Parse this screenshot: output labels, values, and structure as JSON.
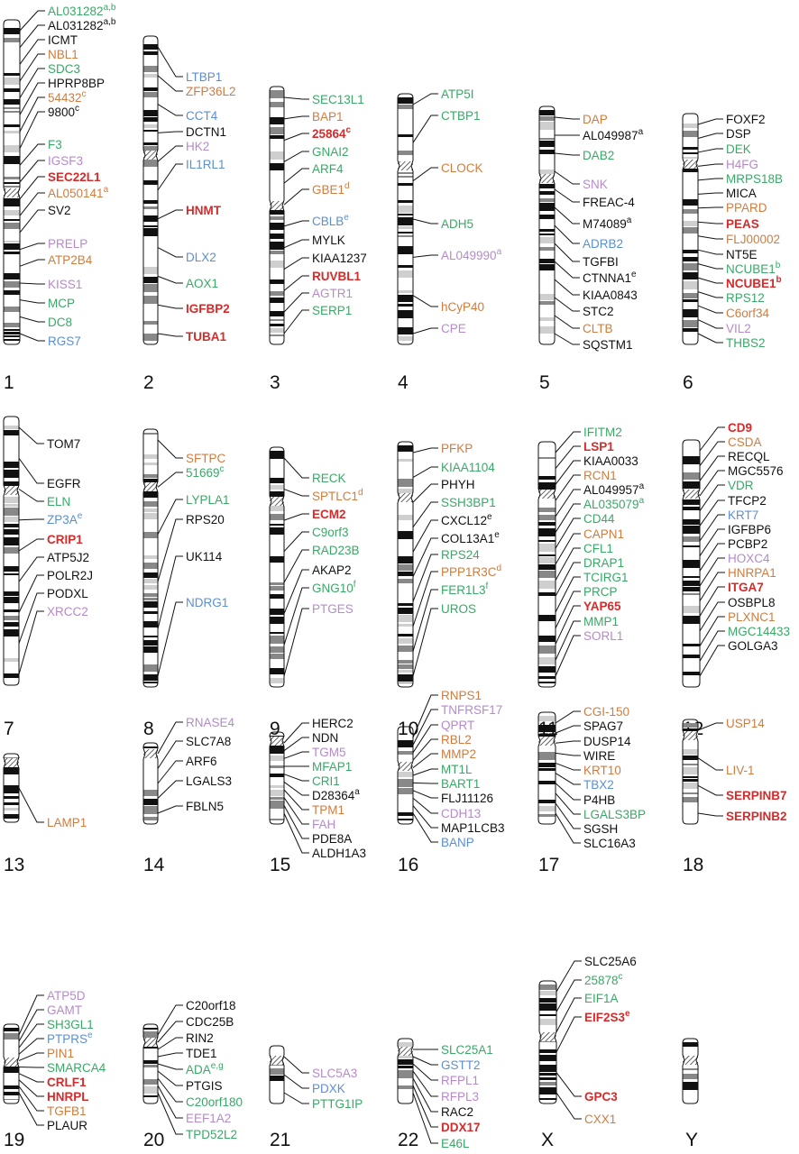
{
  "colors": {
    "black": "#111111",
    "green": "#3aa867",
    "orange": "#d07c3f",
    "red": "#d42b2b",
    "blue": "#5b8fd3",
    "purple": "#b58ac9"
  },
  "chromosomes": [
    {
      "id": "1",
      "label": "1",
      "genes": [
        {
          "name": "AL031282",
          "sup": "a,b",
          "color": "green"
        },
        {
          "name": "AL031282",
          "sup": "a,b",
          "color": "black"
        },
        {
          "name": "ICMT",
          "color": "black"
        },
        {
          "name": "NBL1",
          "color": "orange"
        },
        {
          "name": "SDC3",
          "color": "green"
        },
        {
          "name": "HPRP8BP",
          "color": "black"
        },
        {
          "name": "54432",
          "sup": "c",
          "color": "orange"
        },
        {
          "name": "9800",
          "sup": "c",
          "color": "black"
        },
        {
          "name": "F3",
          "color": "green"
        },
        {
          "name": "IGSF3",
          "color": "purple"
        },
        {
          "name": "SEC22L1",
          "color": "red",
          "bold": true
        },
        {
          "name": "AL050141",
          "sup": "a",
          "color": "orange"
        },
        {
          "name": "SV2",
          "color": "black"
        },
        {
          "name": "PRELP",
          "color": "purple"
        },
        {
          "name": "ATP2B4",
          "color": "orange"
        },
        {
          "name": "KISS1",
          "color": "purple"
        },
        {
          "name": "MCP",
          "color": "green"
        },
        {
          "name": "DC8",
          "color": "green"
        },
        {
          "name": "RGS7",
          "color": "blue"
        }
      ]
    },
    {
      "id": "2",
      "label": "2",
      "genes": [
        {
          "name": "LTBP1",
          "color": "blue"
        },
        {
          "name": "ZFP36L2",
          "color": "orange"
        },
        {
          "name": "CCT4",
          "color": "blue"
        },
        {
          "name": "DCTN1",
          "color": "black"
        },
        {
          "name": "HK2",
          "color": "purple"
        },
        {
          "name": "IL1RL1",
          "color": "blue"
        },
        {
          "name": "HNMT",
          "color": "red",
          "bold": true
        },
        {
          "name": "DLX2",
          "color": "blue"
        },
        {
          "name": "AOX1",
          "color": "green"
        },
        {
          "name": "IGFBP2",
          "color": "red",
          "bold": true
        },
        {
          "name": "TUBA1",
          "color": "red",
          "bold": true
        }
      ]
    },
    {
      "id": "3",
      "label": "3",
      "genes": [
        {
          "name": "SEC13L1",
          "color": "green"
        },
        {
          "name": "BAP1",
          "color": "orange"
        },
        {
          "name": "25864",
          "sup": "c",
          "color": "red",
          "bold": true
        },
        {
          "name": "GNAI2",
          "color": "green"
        },
        {
          "name": "ARF4",
          "color": "green"
        },
        {
          "name": "GBE1",
          "sup": "d",
          "color": "orange"
        },
        {
          "name": "CBLB",
          "sup": "e",
          "color": "blue"
        },
        {
          "name": "MYLK",
          "color": "black"
        },
        {
          "name": "KIAA1237",
          "color": "black"
        },
        {
          "name": "RUVBL1",
          "color": "red",
          "bold": true
        },
        {
          "name": "AGTR1",
          "color": "purple"
        },
        {
          "name": "SERP1",
          "color": "green"
        }
      ]
    },
    {
      "id": "4",
      "label": "4",
      "genes": [
        {
          "name": "ATP5I",
          "color": "green"
        },
        {
          "name": "CTBP1",
          "color": "green"
        },
        {
          "name": "CLOCK",
          "color": "orange"
        },
        {
          "name": "ADH5",
          "color": "green"
        },
        {
          "name": "AL049990",
          "sup": "a",
          "color": "purple"
        },
        {
          "name": "hCyP40",
          "color": "orange"
        },
        {
          "name": "CPE",
          "color": "purple"
        }
      ]
    },
    {
      "id": "5",
      "label": "5",
      "genes": [
        {
          "name": "DAP",
          "color": "orange"
        },
        {
          "name": "AL049987",
          "sup": "a",
          "color": "black"
        },
        {
          "name": "DAB2",
          "color": "green"
        },
        {
          "name": "SNK",
          "color": "purple"
        },
        {
          "name": "FREAC-4",
          "color": "black"
        },
        {
          "name": "M74089",
          "sup": "a",
          "color": "black"
        },
        {
          "name": "ADRB2",
          "color": "blue"
        },
        {
          "name": "TGFBI",
          "color": "black"
        },
        {
          "name": "CTNNA1",
          "sup": "e",
          "color": "black"
        },
        {
          "name": "KIAA0843",
          "color": "black"
        },
        {
          "name": "STC2",
          "color": "black"
        },
        {
          "name": "CLTB",
          "color": "orange"
        },
        {
          "name": "SQSTM1",
          "color": "black"
        }
      ]
    },
    {
      "id": "6",
      "label": "6",
      "genes": [
        {
          "name": "FOXF2",
          "color": "black"
        },
        {
          "name": "DSP",
          "color": "black"
        },
        {
          "name": "DEK",
          "color": "green"
        },
        {
          "name": "H4FG",
          "color": "purple"
        },
        {
          "name": "MRPS18B",
          "color": "green"
        },
        {
          "name": "MICA",
          "color": "black"
        },
        {
          "name": "PPARD",
          "color": "orange"
        },
        {
          "name": "PEAS",
          "color": "red",
          "bold": true
        },
        {
          "name": "FLJ00002",
          "color": "orange"
        },
        {
          "name": "NT5E",
          "color": "black"
        },
        {
          "name": "NCUBE1",
          "sup": "b",
          "color": "green"
        },
        {
          "name": "NCUBE1",
          "sup": "b",
          "color": "red",
          "bold": true
        },
        {
          "name": "RPS12",
          "color": "green"
        },
        {
          "name": "C6orf34",
          "color": "orange"
        },
        {
          "name": "VIL2",
          "color": "purple"
        },
        {
          "name": "THBS2",
          "color": "green"
        }
      ]
    },
    {
      "id": "7",
      "label": "7",
      "genes": [
        {
          "name": "TOM7",
          "color": "black"
        },
        {
          "name": "EGFR",
          "color": "black"
        },
        {
          "name": "ELN",
          "color": "green"
        },
        {
          "name": "ZP3A",
          "sup": "e",
          "color": "blue"
        },
        {
          "name": "CRIP1",
          "color": "red",
          "bold": true
        },
        {
          "name": "ATP5J2",
          "color": "black"
        },
        {
          "name": "POLR2J",
          "color": "black"
        },
        {
          "name": "PODXL",
          "color": "black"
        },
        {
          "name": "XRCC2",
          "color": "purple"
        }
      ]
    },
    {
      "id": "8",
      "label": "8",
      "genes": [
        {
          "name": "SFTPC",
          "color": "orange"
        },
        {
          "name": "51669",
          "sup": "c",
          "color": "green"
        },
        {
          "name": "LYPLA1",
          "color": "green"
        },
        {
          "name": "RPS20",
          "color": "black"
        },
        {
          "name": "UK114",
          "color": "black"
        },
        {
          "name": "NDRG1",
          "color": "blue"
        }
      ]
    },
    {
      "id": "9",
      "label": "9",
      "genes": [
        {
          "name": "RECK",
          "color": "green"
        },
        {
          "name": "SPTLC1",
          "sup": "d",
          "color": "orange"
        },
        {
          "name": "ECM2",
          "color": "red",
          "bold": true
        },
        {
          "name": "C9orf3",
          "color": "green"
        },
        {
          "name": "RAD23B",
          "color": "green"
        },
        {
          "name": "AKAP2",
          "color": "black"
        },
        {
          "name": "GNG10",
          "sup": "f",
          "color": "green"
        },
        {
          "name": "PTGES",
          "color": "purple"
        }
      ]
    },
    {
      "id": "10",
      "label": "10",
      "genes": [
        {
          "name": "PFKP",
          "color": "orange"
        },
        {
          "name": "KIAA1104",
          "color": "green"
        },
        {
          "name": "PHYH",
          "color": "black"
        },
        {
          "name": "SSH3BP1",
          "color": "green"
        },
        {
          "name": "CXCL12",
          "sup": "e",
          "color": "black"
        },
        {
          "name": "COL13A1",
          "sup": "e",
          "color": "black"
        },
        {
          "name": "RPS24",
          "color": "green"
        },
        {
          "name": "PPP1R3C",
          "sup": "d",
          "color": "orange"
        },
        {
          "name": "FER1L3",
          "sup": "f",
          "color": "green"
        },
        {
          "name": "UROS",
          "color": "green"
        }
      ]
    },
    {
      "id": "11",
      "label": "11",
      "genes": [
        {
          "name": "IFITM2",
          "color": "green"
        },
        {
          "name": "LSP1",
          "color": "red",
          "bold": true
        },
        {
          "name": "KIAA0033",
          "color": "black"
        },
        {
          "name": "RCN1",
          "color": "orange"
        },
        {
          "name": "AL049957",
          "sup": "a",
          "color": "black"
        },
        {
          "name": "AL035079",
          "sup": "a",
          "color": "green"
        },
        {
          "name": "CD44",
          "color": "green"
        },
        {
          "name": "CAPN1",
          "color": "orange"
        },
        {
          "name": "CFL1",
          "color": "green"
        },
        {
          "name": "DRAP1",
          "color": "green"
        },
        {
          "name": "TCIRG1",
          "color": "green"
        },
        {
          "name": "PRCP",
          "color": "green"
        },
        {
          "name": "YAP65",
          "color": "red",
          "bold": true
        },
        {
          "name": "MMP1",
          "color": "green"
        },
        {
          "name": "SORL1",
          "color": "purple"
        }
      ]
    },
    {
      "id": "12",
      "label": "12",
      "genes": [
        {
          "name": "CD9",
          "color": "red",
          "bold": true
        },
        {
          "name": "CSDA",
          "color": "orange"
        },
        {
          "name": "RECQL",
          "color": "black"
        },
        {
          "name": "MGC5576",
          "color": "black"
        },
        {
          "name": "VDR",
          "color": "green"
        },
        {
          "name": "TFCP2",
          "color": "black"
        },
        {
          "name": "KRT7",
          "color": "blue"
        },
        {
          "name": "IGFBP6",
          "color": "black"
        },
        {
          "name": "PCBP2",
          "color": "black"
        },
        {
          "name": "HOXC4",
          "color": "purple"
        },
        {
          "name": "HNRPA1",
          "color": "orange"
        },
        {
          "name": "ITGA7",
          "color": "red",
          "bold": true
        },
        {
          "name": "OSBPL8",
          "color": "black"
        },
        {
          "name": "PLXNC1",
          "color": "orange"
        },
        {
          "name": "MGC14433",
          "color": "green"
        },
        {
          "name": "GOLGA3",
          "color": "black"
        }
      ]
    },
    {
      "id": "13",
      "label": "13",
      "genes": [
        {
          "name": "LAMP1",
          "color": "orange"
        }
      ]
    },
    {
      "id": "14",
      "label": "14",
      "genes": [
        {
          "name": "RNASE4",
          "color": "purple"
        },
        {
          "name": "SLC7A8",
          "color": "black"
        },
        {
          "name": "ARF6",
          "color": "black"
        },
        {
          "name": "LGALS3",
          "color": "black"
        },
        {
          "name": "FBLN5",
          "color": "black"
        }
      ]
    },
    {
      "id": "15",
      "label": "15",
      "genes": [
        {
          "name": "HERC2",
          "color": "black"
        },
        {
          "name": "NDN",
          "color": "black"
        },
        {
          "name": "TGM5",
          "color": "purple"
        },
        {
          "name": "MFAP1",
          "color": "green"
        },
        {
          "name": "CRI1",
          "color": "green"
        },
        {
          "name": "D28364",
          "sup": "a",
          "color": "black"
        },
        {
          "name": "TPM1",
          "color": "orange"
        },
        {
          "name": "FAH",
          "color": "purple"
        },
        {
          "name": "PDE8A",
          "color": "black"
        },
        {
          "name": "ALDH1A3",
          "color": "black"
        }
      ]
    },
    {
      "id": "16",
      "label": "16",
      "genes": [
        {
          "name": "RNPS1",
          "color": "orange"
        },
        {
          "name": "TNFRSF17",
          "color": "purple"
        },
        {
          "name": "QPRT",
          "color": "purple"
        },
        {
          "name": "RBL2",
          "color": "orange"
        },
        {
          "name": "MMP2",
          "color": "orange"
        },
        {
          "name": "MT1L",
          "color": "green"
        },
        {
          "name": "BART1",
          "color": "green"
        },
        {
          "name": "FLJ11126",
          "color": "black"
        },
        {
          "name": "CDH13",
          "color": "purple"
        },
        {
          "name": "MAP1LCB3",
          "color": "black"
        },
        {
          "name": "BANP",
          "color": "blue"
        }
      ]
    },
    {
      "id": "17",
      "label": "17",
      "genes": [
        {
          "name": "CGI-150",
          "color": "orange"
        },
        {
          "name": "SPAG7",
          "color": "black"
        },
        {
          "name": "DUSP14",
          "color": "black"
        },
        {
          "name": "WIRE",
          "color": "black"
        },
        {
          "name": "KRT10",
          "color": "orange"
        },
        {
          "name": "TBX2",
          "color": "blue"
        },
        {
          "name": "P4HB",
          "color": "black"
        },
        {
          "name": "LGALS3BP",
          "color": "green"
        },
        {
          "name": "SGSH",
          "color": "black"
        },
        {
          "name": "SLC16A3",
          "color": "black"
        }
      ]
    },
    {
      "id": "18",
      "label": "18",
      "genes": [
        {
          "name": "USP14",
          "color": "orange"
        },
        {
          "name": "LIV-1",
          "color": "orange"
        },
        {
          "name": "SERPINB7",
          "color": "red",
          "bold": true
        },
        {
          "name": "SERPINB2",
          "color": "red",
          "bold": true
        }
      ]
    },
    {
      "id": "19",
      "label": "19",
      "genes": [
        {
          "name": "ATP5D",
          "color": "purple"
        },
        {
          "name": "GAMT",
          "color": "purple"
        },
        {
          "name": "SH3GL1",
          "color": "green"
        },
        {
          "name": "PTPRS",
          "sup": "e",
          "color": "blue"
        },
        {
          "name": "PIN1",
          "color": "orange"
        },
        {
          "name": "SMARCA4",
          "color": "green"
        },
        {
          "name": "CRLF1",
          "color": "red",
          "bold": true
        },
        {
          "name": "HNRPL",
          "color": "red",
          "bold": true
        },
        {
          "name": "TGFB1",
          "color": "orange"
        },
        {
          "name": "PLAUR",
          "color": "black"
        }
      ]
    },
    {
      "id": "20",
      "label": "20",
      "genes": [
        {
          "name": "C20orf18",
          "color": "black"
        },
        {
          "name": "CDC25B",
          "color": "black"
        },
        {
          "name": "RIN2",
          "color": "black"
        },
        {
          "name": "TDE1",
          "color": "black"
        },
        {
          "name": "ADA",
          "sup": "e,g",
          "color": "green"
        },
        {
          "name": "PTGIS",
          "color": "black"
        },
        {
          "name": "C20orf180",
          "color": "green"
        },
        {
          "name": "EEF1A2",
          "color": "purple"
        },
        {
          "name": "TPD52L2",
          "color": "green"
        }
      ]
    },
    {
      "id": "21",
      "label": "21",
      "genes": [
        {
          "name": "SLC5A3",
          "color": "purple"
        },
        {
          "name": "PDXK",
          "color": "blue"
        },
        {
          "name": "PTTG1IP",
          "color": "green"
        }
      ]
    },
    {
      "id": "22",
      "label": "22",
      "genes": [
        {
          "name": "SLC25A1",
          "color": "green"
        },
        {
          "name": "GSTT2",
          "color": "blue"
        },
        {
          "name": "RFPL1",
          "color": "purple"
        },
        {
          "name": "RFPL3",
          "color": "purple"
        },
        {
          "name": "RAC2",
          "color": "black"
        },
        {
          "name": "DDX17",
          "color": "red",
          "bold": true
        },
        {
          "name": "E46L",
          "color": "green"
        }
      ]
    },
    {
      "id": "X",
      "label": "X",
      "genes": [
        {
          "name": "SLC25A6",
          "color": "black"
        },
        {
          "name": "25878",
          "sup": "c",
          "color": "green"
        },
        {
          "name": "EIF1A",
          "color": "green"
        },
        {
          "name": "EIF2S3",
          "sup": "e",
          "color": "red",
          "bold": true
        },
        {
          "name": "GPC3",
          "color": "red",
          "bold": true
        },
        {
          "name": "CXX1",
          "color": "orange"
        }
      ]
    },
    {
      "id": "Y",
      "label": "Y",
      "genes": []
    }
  ]
}
